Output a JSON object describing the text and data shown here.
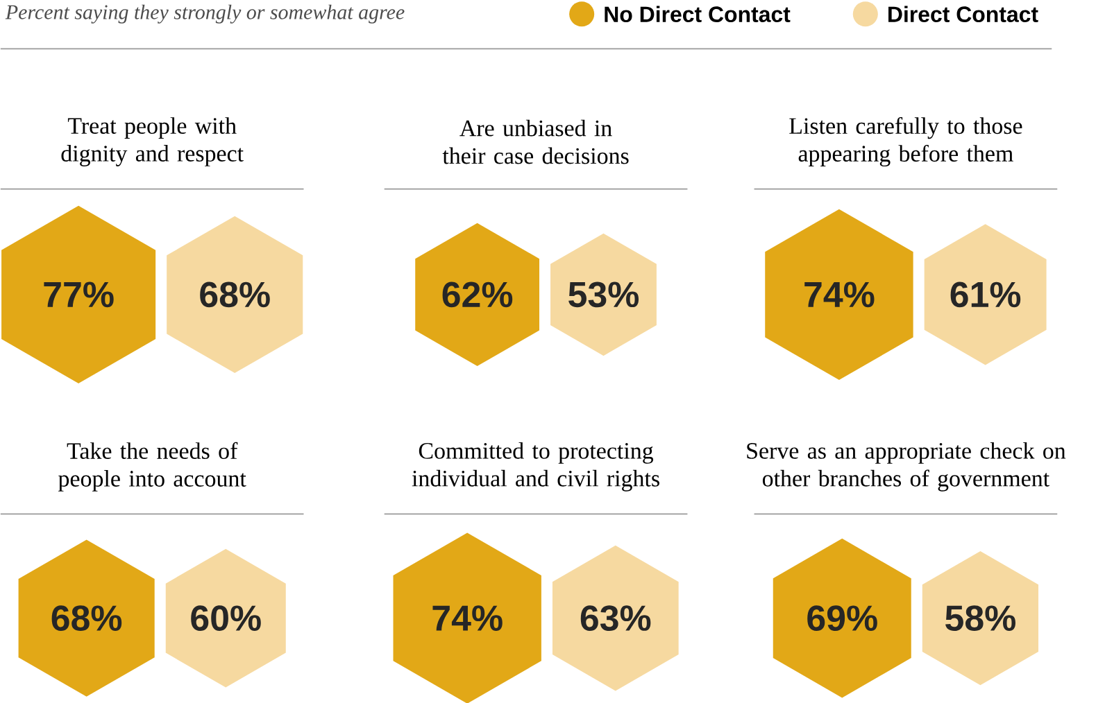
{
  "chart_data": {
    "type": "other",
    "subtitle": "Percent saying they strongly or somewhat agree",
    "legend": "top right",
    "categories": [
      "Treat people with dignity and respect",
      "Are unbiased in their case decisions",
      "Listen carefully to those appearing before them",
      "Take the needs of people into account",
      "Committed to protecting individual and civil rights",
      "Serve as an appropriate check on other branches of government"
    ],
    "series": [
      {
        "name": "No Direct Contact",
        "color": "#e2a817",
        "values": [
          77,
          62,
          74,
          68,
          74,
          69
        ],
        "value_labels": [
          "77%",
          "62%",
          "74%",
          "68%",
          "74%",
          "69%"
        ]
      },
      {
        "name": "Direct Contact",
        "color": "#f6d9a0",
        "values": [
          68,
          53,
          61,
          60,
          63,
          58
        ],
        "value_labels": [
          "68%",
          "53%",
          "61%",
          "60%",
          "63%",
          "58%"
        ]
      }
    ]
  }
}
